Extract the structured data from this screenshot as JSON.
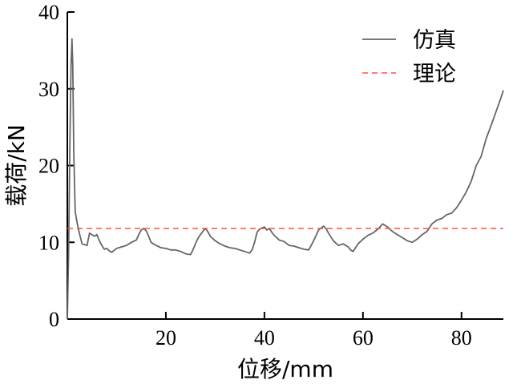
{
  "chart_data": {
    "type": "line",
    "title": "",
    "xlabel": "位移/mm",
    "ylabel": "载荷/kN",
    "xlim": [
      0,
      88.5
    ],
    "ylim": [
      0,
      40
    ],
    "xticks": [
      20,
      40,
      60,
      80
    ],
    "yticks": [
      0,
      10,
      20,
      30,
      40
    ],
    "grid": false,
    "legend_position": "top-right",
    "series": [
      {
        "name": "仿真",
        "color": "#666666",
        "style": "solid",
        "points": [
          [
            0,
            0
          ],
          [
            0.25,
            8
          ],
          [
            0.5,
            22
          ],
          [
            0.75,
            33
          ],
          [
            0.95,
            36.5
          ],
          [
            1.1,
            33
          ],
          [
            1.3,
            22
          ],
          [
            1.6,
            14
          ],
          [
            2.0,
            12.5
          ],
          [
            2.5,
            11
          ],
          [
            3.0,
            9.8
          ],
          [
            3.5,
            9.7
          ],
          [
            4.0,
            9.6
          ],
          [
            4.5,
            11.2
          ],
          [
            5.0,
            11.0
          ],
          [
            5.5,
            10.8
          ],
          [
            6.0,
            11.0
          ],
          [
            6.5,
            10.2
          ],
          [
            7.0,
            9.6
          ],
          [
            7.5,
            9.1
          ],
          [
            8.0,
            9.2
          ],
          [
            8.5,
            8.9
          ],
          [
            9.0,
            8.7
          ],
          [
            10.0,
            9.2
          ],
          [
            11.0,
            9.4
          ],
          [
            12.0,
            9.6
          ],
          [
            13.0,
            10.0
          ],
          [
            14.0,
            10.3
          ],
          [
            14.5,
            11.0
          ],
          [
            15.0,
            11.6
          ],
          [
            15.5,
            11.8
          ],
          [
            16.0,
            11.5
          ],
          [
            16.5,
            10.8
          ],
          [
            17.0,
            10.0
          ],
          [
            18.0,
            9.6
          ],
          [
            19.0,
            9.3
          ],
          [
            20.0,
            9.2
          ],
          [
            21.0,
            9.0
          ],
          [
            22.0,
            9.0
          ],
          [
            23.0,
            8.8
          ],
          [
            24.0,
            8.5
          ],
          [
            25.0,
            8.4
          ],
          [
            25.5,
            9.0
          ],
          [
            26.0,
            9.8
          ],
          [
            26.5,
            10.5
          ],
          [
            27.0,
            11.0
          ],
          [
            27.5,
            11.4
          ],
          [
            28.0,
            11.8
          ],
          [
            28.5,
            11.4
          ],
          [
            29.0,
            10.8
          ],
          [
            30.0,
            10.2
          ],
          [
            31.0,
            9.8
          ],
          [
            32.0,
            9.5
          ],
          [
            33.0,
            9.3
          ],
          [
            34.0,
            9.2
          ],
          [
            35.0,
            9.0
          ],
          [
            36.0,
            8.8
          ],
          [
            37.0,
            8.6
          ],
          [
            37.5,
            9.0
          ],
          [
            38.0,
            10.0
          ],
          [
            38.5,
            11.3
          ],
          [
            39.0,
            11.7
          ],
          [
            40.0,
            12.0
          ],
          [
            40.5,
            11.6
          ],
          [
            41.0,
            11.8
          ],
          [
            41.5,
            11.3
          ],
          [
            42.0,
            10.9
          ],
          [
            43.0,
            10.3
          ],
          [
            44.0,
            10.1
          ],
          [
            45.0,
            9.6
          ],
          [
            46.0,
            9.5
          ],
          [
            47.0,
            9.3
          ],
          [
            48.0,
            9.1
          ],
          [
            49.0,
            9.0
          ],
          [
            49.5,
            9.6
          ],
          [
            50.0,
            10.2
          ],
          [
            51.0,
            11.6
          ],
          [
            52.0,
            12.1
          ],
          [
            52.5,
            11.8
          ],
          [
            53.0,
            11.2
          ],
          [
            54.0,
            10.2
          ],
          [
            55.0,
            9.6
          ],
          [
            56.0,
            9.8
          ],
          [
            57.0,
            9.4
          ],
          [
            57.5,
            9.0
          ],
          [
            58.0,
            8.8
          ],
          [
            58.5,
            9.3
          ],
          [
            59.0,
            9.8
          ],
          [
            60.0,
            10.4
          ],
          [
            61.0,
            10.9
          ],
          [
            62.0,
            11.2
          ],
          [
            63.0,
            11.7
          ],
          [
            64.0,
            12.4
          ],
          [
            65.0,
            12.0
          ],
          [
            66.0,
            11.4
          ],
          [
            67.0,
            11.0
          ],
          [
            68.0,
            10.6
          ],
          [
            69.0,
            10.2
          ],
          [
            70.0,
            10.0
          ],
          [
            71.0,
            10.4
          ],
          [
            72.0,
            11.0
          ],
          [
            73.0,
            11.4
          ],
          [
            74.0,
            12.4
          ],
          [
            75.0,
            12.9
          ],
          [
            76.0,
            13.1
          ],
          [
            77.0,
            13.6
          ],
          [
            78.0,
            13.8
          ],
          [
            79.0,
            14.5
          ],
          [
            80.0,
            15.5
          ],
          [
            81.0,
            16.6
          ],
          [
            82.0,
            18.0
          ],
          [
            83.0,
            20.0
          ],
          [
            84.0,
            21.2
          ],
          [
            85.0,
            23.5
          ],
          [
            86.0,
            25.2
          ],
          [
            87.0,
            27.0
          ],
          [
            88.0,
            28.8
          ],
          [
            88.5,
            29.8
          ]
        ]
      },
      {
        "name": "理论",
        "color": "#ff5533",
        "style": "dashed",
        "points": [
          [
            0,
            11.8
          ],
          [
            88.5,
            11.8
          ]
        ]
      }
    ]
  }
}
